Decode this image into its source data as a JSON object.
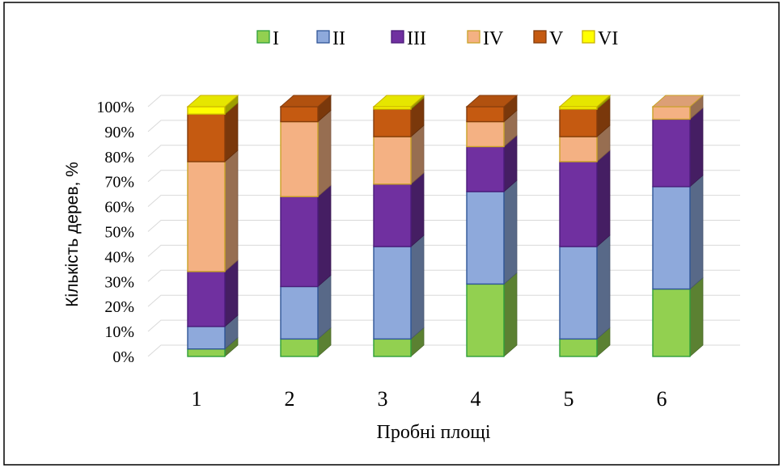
{
  "chart_data": {
    "type": "bar",
    "stacked": true,
    "style": "3d-stacked-100-percent",
    "categories": [
      "1",
      "2",
      "3",
      "4",
      "5",
      "6"
    ],
    "xlabel": "Пробні площі",
    "ylabel": "Кількість дерев, %",
    "ylim": [
      0,
      100
    ],
    "yticks": [
      "0%",
      "10%",
      "20%",
      "30%",
      "40%",
      "50%",
      "60%",
      "70%",
      "80%",
      "90%",
      "100%"
    ],
    "grid": true,
    "legend_position": "top",
    "series": [
      {
        "name": "I",
        "color": "#92D050",
        "values": [
          3,
          7,
          7,
          29,
          7,
          27
        ]
      },
      {
        "name": "II",
        "color": "#8EA9DB",
        "values": [
          9,
          21,
          37,
          37,
          37,
          41
        ]
      },
      {
        "name": "III",
        "color": "#7030A0",
        "values": [
          22,
          36,
          25,
          18,
          34,
          27
        ]
      },
      {
        "name": "IV",
        "color": "#F4B183",
        "values": [
          44,
          30,
          19,
          10,
          10,
          5
        ]
      },
      {
        "name": "V",
        "color": "#C55A11",
        "values": [
          19,
          6,
          11,
          6,
          11,
          0
        ]
      },
      {
        "name": "VI",
        "color": "#FFFF00",
        "values": [
          3,
          0,
          1,
          0,
          1,
          0
        ]
      }
    ],
    "border_colors": [
      "#2E9E3A",
      "#2F5597",
      "#4B1C7A",
      "#C9A227",
      "#843C0C",
      "#C9B200"
    ]
  }
}
